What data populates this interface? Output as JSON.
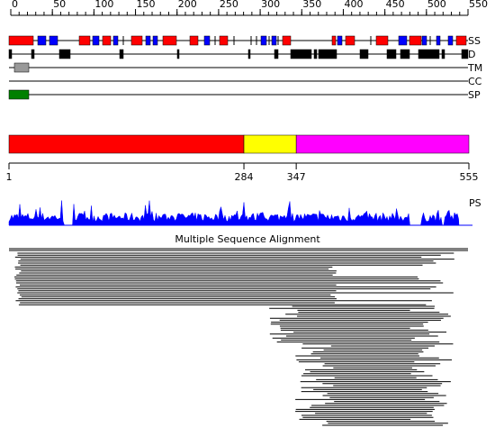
{
  "ruler": {
    "ticks": [
      0,
      50,
      100,
      150,
      200,
      250,
      300,
      350,
      400,
      450,
      500,
      550
    ]
  },
  "tracks": [
    {
      "label": "SS"
    },
    {
      "label": "D"
    },
    {
      "label": "TM"
    },
    {
      "label": "CC"
    },
    {
      "label": "SP"
    }
  ],
  "domains": {
    "boundaries": [
      1,
      284,
      347,
      555
    ],
    "colors": [
      "#ff0000",
      "#ffff00",
      "#ff00ff"
    ]
  },
  "ps": {
    "label": "PS",
    "color": "#0000ff"
  },
  "msa": {
    "title": "Multiple Sequence Alignment"
  }
}
